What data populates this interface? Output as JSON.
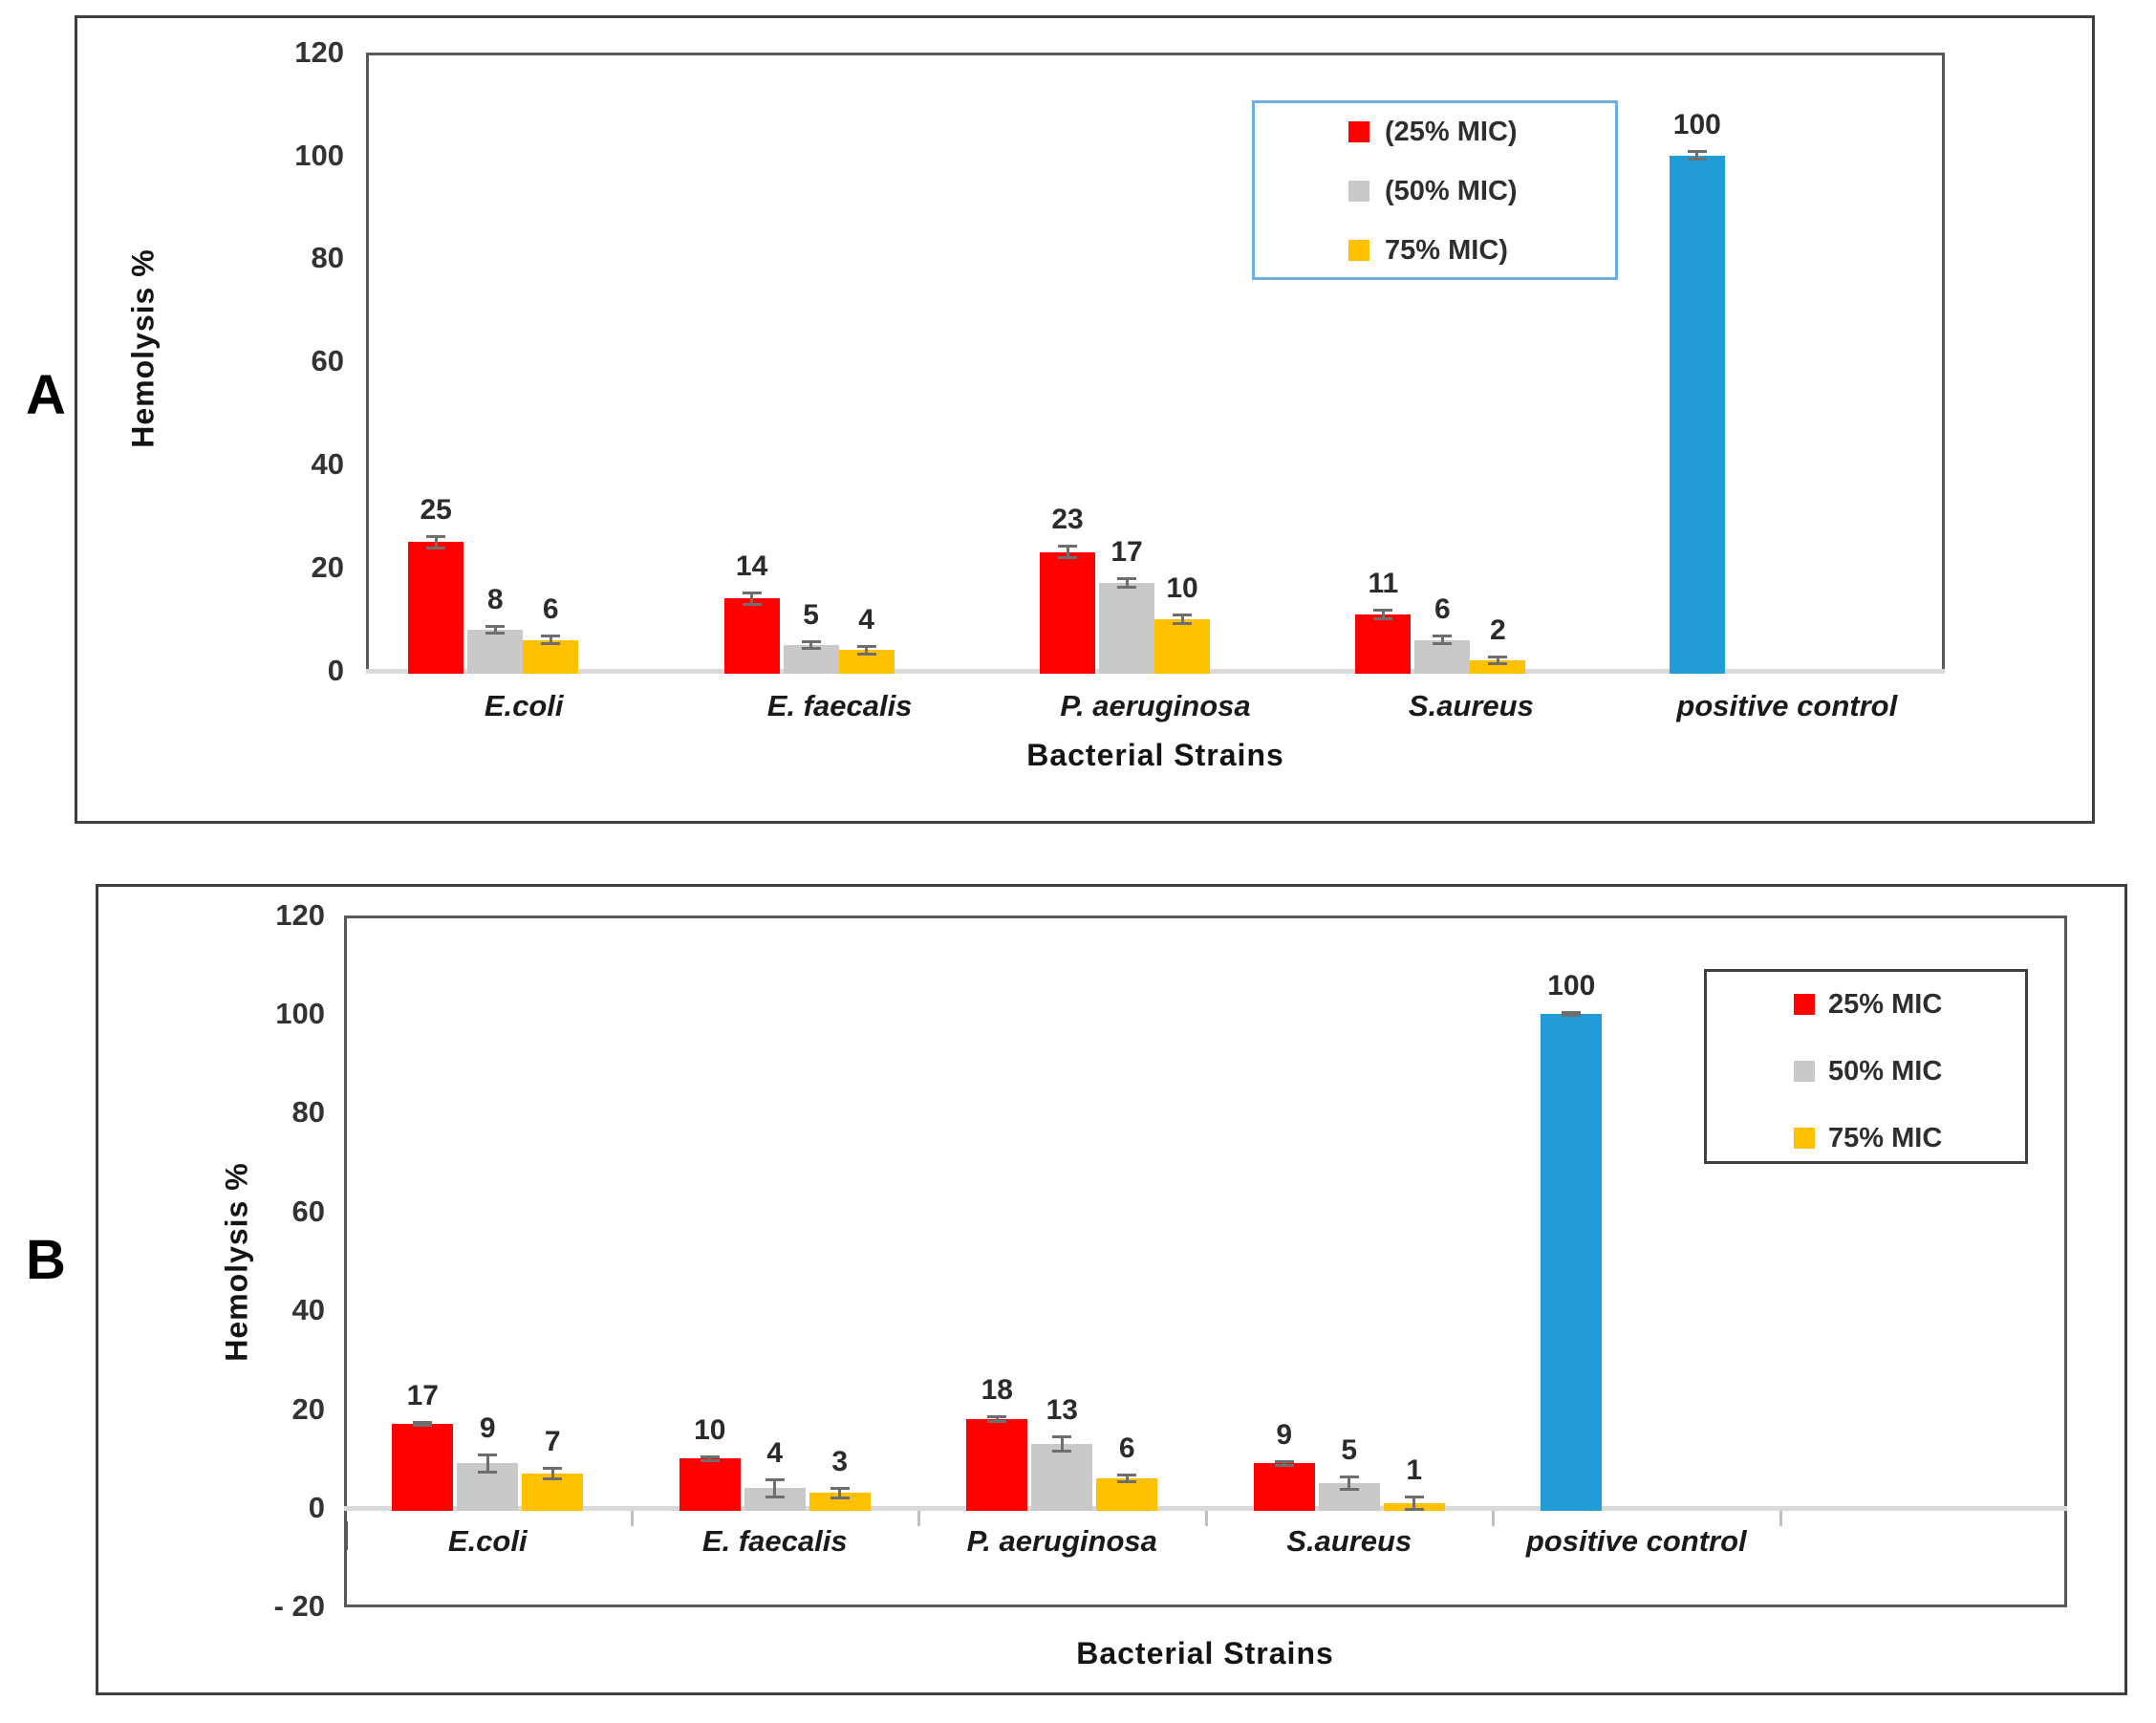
{
  "page_title": "Hemolysis assay bar charts",
  "chart_data": [
    {
      "panel_label": "A",
      "type": "bar",
      "ylabel": "Hemolysis %",
      "xlabel": "Bacterial Strains",
      "ylim": [
        0,
        120
      ],
      "yticks": [
        "120",
        "100",
        "80",
        "60",
        "40",
        "20",
        "0"
      ],
      "ytick_values": [
        120,
        100,
        80,
        60,
        40,
        20,
        0
      ],
      "categories": [
        "E.coli",
        "E. faecalis",
        "P. aeruginosa",
        "S.aureus",
        "positive control"
      ],
      "grid": false,
      "bar_value_labels_shown": true,
      "error_bars_shown": true,
      "legend": {
        "position": "top-right-inside",
        "border_color": "#6FAEDF",
        "items": [
          {
            "label": "(25% MIC)",
            "color": "#FF0000"
          },
          {
            "label": "(50% MIC)",
            "color": "#C9C9C9"
          },
          {
            "label": "75% MIC)",
            "color": "#FFC000"
          }
        ]
      },
      "series": [
        {
          "name": "25% MIC",
          "color": "#FF0000",
          "values": [
            25,
            14,
            23,
            11,
            null
          ],
          "errors": [
            1.2,
            1.2,
            1.2,
            0.9,
            null
          ]
        },
        {
          "name": "50% MIC",
          "color": "#C9C9C9",
          "values": [
            8,
            5,
            17,
            6,
            null
          ],
          "errors": [
            0.8,
            0.7,
            0.9,
            0.8,
            null
          ]
        },
        {
          "name": "75% MIC",
          "color": "#FFC000",
          "values": [
            6,
            4,
            10,
            2,
            null
          ],
          "errors": [
            0.9,
            0.8,
            0.9,
            0.7,
            null
          ]
        },
        {
          "name": "positive control",
          "color": "#219CD7",
          "values": [
            null,
            null,
            null,
            null,
            100
          ],
          "errors": [
            null,
            null,
            null,
            null,
            0.8
          ]
        }
      ]
    },
    {
      "panel_label": "B",
      "type": "bar",
      "ylabel": "Hemolysis %",
      "xlabel": "Bacterial Strains",
      "ylim": [
        -20,
        120
      ],
      "yticks": [
        "120",
        "100",
        "80",
        "60",
        "40",
        "20",
        "0",
        "- 20"
      ],
      "ytick_values": [
        120,
        100,
        80,
        60,
        40,
        20,
        0,
        -20
      ],
      "categories": [
        "E.coli",
        "E. faecalis",
        "P. aeruginosa",
        "S.aureus",
        "positive control"
      ],
      "grid": false,
      "bar_value_labels_shown": true,
      "error_bars_shown": true,
      "legend": {
        "position": "top-right-inside",
        "border_color": "#404040",
        "items": [
          {
            "label": "25% MIC",
            "color": "#FF0000"
          },
          {
            "label": "50% MIC",
            "color": "#C9C9C9"
          },
          {
            "label": "75% MIC",
            "color": "#FFC000"
          }
        ]
      },
      "series": [
        {
          "name": "25% MIC",
          "color": "#FF0000",
          "values": [
            17,
            10,
            18,
            9,
            null
          ],
          "errors": [
            0.4,
            0.5,
            0.5,
            0.4,
            null
          ]
        },
        {
          "name": "50% MIC",
          "color": "#C9C9C9",
          "values": [
            9,
            4,
            13,
            5,
            null
          ],
          "errors": [
            1.8,
            1.8,
            1.5,
            1.3,
            null
          ]
        },
        {
          "name": "75% MIC",
          "color": "#FFC000",
          "values": [
            7,
            3,
            6,
            1,
            null
          ],
          "errors": [
            1.2,
            1.0,
            0.8,
            1.3,
            null
          ]
        },
        {
          "name": "positive control",
          "color": "#219CD7",
          "values": [
            null,
            null,
            null,
            null,
            100
          ],
          "errors": [
            null,
            null,
            null,
            null,
            0.3
          ]
        }
      ]
    }
  ]
}
